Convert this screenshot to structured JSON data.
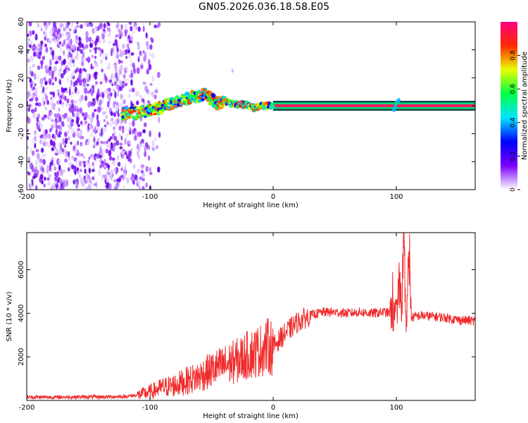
{
  "title": "GN05.2026.036.18.58.E05",
  "chart_data": [
    {
      "type": "heatmap",
      "xlabel": "Height of straight line (km)",
      "ylabel": "Frequency (Hz)",
      "xlim": [
        -200,
        164
      ],
      "ylim": [
        -60,
        60
      ],
      "xticks": [
        -200,
        -100,
        0,
        100
      ],
      "yticks": [
        -60,
        -40,
        -20,
        0,
        20,
        40,
        60
      ],
      "colorbar": {
        "label": "Normalized spectral amplitude",
        "range": [
          0,
          1
        ],
        "ticks": [
          0,
          0.2,
          0.4,
          0.6,
          0.8
        ],
        "colors": [
          "#ffffff",
          "#7b00ff",
          "#0000ff",
          "#00e5ff",
          "#00ff44",
          "#e8ff00",
          "#ff2a00",
          "#ff0080"
        ]
      },
      "trace": {
        "x": [
          -122,
          -110,
          -100,
          -90,
          -80,
          -70,
          -60,
          -55,
          -50,
          -45,
          -40,
          -35,
          -30,
          -25,
          -20,
          -15,
          -10,
          -5,
          0,
          50,
          88,
          92,
          98,
          100,
          102,
          105,
          164
        ],
        "y": [
          -6,
          -5,
          -3,
          -1,
          2,
          5,
          7,
          9,
          5,
          2,
          3,
          2,
          1,
          1,
          0,
          -2,
          0,
          0,
          0,
          0,
          0,
          0,
          -3,
          2,
          4,
          0,
          0
        ]
      },
      "noise_region_x": [
        -200,
        -100
      ]
    },
    {
      "type": "line",
      "xlabel": "Height of straight line (km)",
      "ylabel": "SNR (10 * v/v)",
      "xlim": [
        -200,
        164
      ],
      "ylim": [
        0,
        7700
      ],
      "xticks": [
        -200,
        -100,
        0,
        100
      ],
      "yticks": [
        2000,
        4000,
        6000
      ],
      "series": [
        {
          "color": "#ef2b2b",
          "x": [
            -200,
            -180,
            -160,
            -140,
            -120,
            -110,
            -100,
            -90,
            -80,
            -70,
            -60,
            -50,
            -40,
            -30,
            -20,
            -10,
            -5,
            0,
            5,
            10,
            20,
            30,
            40,
            50,
            60,
            70,
            80,
            90,
            95,
            98,
            100,
            102,
            104,
            106,
            108,
            110,
            112,
            120,
            130,
            140,
            150,
            164
          ],
          "y": [
            150,
            150,
            160,
            160,
            180,
            250,
            380,
            600,
            700,
            900,
            1100,
            1400,
            1600,
            1800,
            2100,
            2300,
            2500,
            2450,
            2800,
            3100,
            3600,
            3900,
            4050,
            4050,
            4000,
            4050,
            4000,
            4050,
            4000,
            3800,
            4000,
            5000,
            3500,
            6800,
            3000,
            6900,
            3800,
            3900,
            3850,
            3800,
            3700,
            3650
          ]
        }
      ]
    }
  ]
}
